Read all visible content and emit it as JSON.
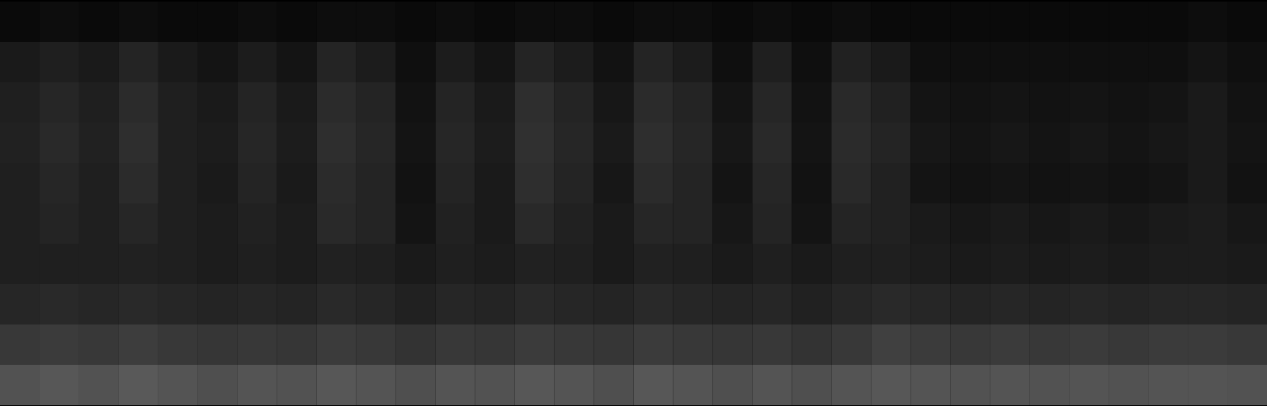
{
  "chart_data": {
    "type": "heatmap",
    "tick_labels": false,
    "zlim": [
      0,
      1
    ],
    "cells": [
      [
        0.04,
        0.05,
        0.04,
        0.05,
        0.04,
        0.04,
        0.05,
        0.04,
        0.05,
        0.05,
        0.04,
        0.05,
        0.04,
        0.05,
        0.05,
        0.04,
        0.05,
        0.05,
        0.04,
        0.05,
        0.04,
        0.05,
        0.04,
        0.04,
        0.04,
        0.04,
        0.04,
        0.04,
        0.04,
        0.04,
        0.05,
        0.04
      ],
      [
        0.1,
        0.12,
        0.1,
        0.14,
        0.1,
        0.08,
        0.11,
        0.08,
        0.14,
        0.11,
        0.06,
        0.11,
        0.08,
        0.14,
        0.11,
        0.07,
        0.14,
        0.11,
        0.06,
        0.12,
        0.06,
        0.13,
        0.1,
        0.06,
        0.06,
        0.06,
        0.06,
        0.06,
        0.06,
        0.06,
        0.08,
        0.06
      ],
      [
        0.12,
        0.15,
        0.12,
        0.17,
        0.12,
        0.1,
        0.14,
        0.1,
        0.17,
        0.14,
        0.07,
        0.14,
        0.1,
        0.18,
        0.14,
        0.09,
        0.17,
        0.14,
        0.08,
        0.15,
        0.07,
        0.16,
        0.13,
        0.08,
        0.07,
        0.08,
        0.07,
        0.08,
        0.07,
        0.08,
        0.1,
        0.07
      ],
      [
        0.13,
        0.16,
        0.13,
        0.18,
        0.12,
        0.11,
        0.15,
        0.11,
        0.18,
        0.15,
        0.08,
        0.15,
        0.11,
        0.19,
        0.15,
        0.1,
        0.18,
        0.15,
        0.09,
        0.16,
        0.08,
        0.17,
        0.14,
        0.09,
        0.08,
        0.09,
        0.08,
        0.09,
        0.08,
        0.09,
        0.1,
        0.08
      ],
      [
        0.12,
        0.15,
        0.12,
        0.17,
        0.12,
        0.1,
        0.14,
        0.1,
        0.17,
        0.14,
        0.07,
        0.14,
        0.1,
        0.18,
        0.14,
        0.09,
        0.17,
        0.14,
        0.08,
        0.15,
        0.07,
        0.16,
        0.13,
        0.08,
        0.07,
        0.08,
        0.07,
        0.08,
        0.07,
        0.08,
        0.1,
        0.07
      ],
      [
        0.12,
        0.14,
        0.12,
        0.15,
        0.12,
        0.11,
        0.13,
        0.11,
        0.16,
        0.14,
        0.08,
        0.13,
        0.1,
        0.16,
        0.13,
        0.1,
        0.15,
        0.14,
        0.09,
        0.14,
        0.08,
        0.14,
        0.13,
        0.1,
        0.09,
        0.1,
        0.09,
        0.1,
        0.09,
        0.1,
        0.11,
        0.09
      ],
      [
        0.12,
        0.12,
        0.12,
        0.13,
        0.12,
        0.11,
        0.12,
        0.11,
        0.13,
        0.12,
        0.1,
        0.12,
        0.11,
        0.13,
        0.12,
        0.1,
        0.13,
        0.12,
        0.1,
        0.12,
        0.1,
        0.12,
        0.12,
        0.11,
        0.1,
        0.11,
        0.1,
        0.11,
        0.1,
        0.11,
        0.11,
        0.1
      ],
      [
        0.15,
        0.16,
        0.15,
        0.16,
        0.15,
        0.14,
        0.15,
        0.14,
        0.16,
        0.15,
        0.13,
        0.15,
        0.14,
        0.16,
        0.15,
        0.14,
        0.16,
        0.15,
        0.14,
        0.15,
        0.13,
        0.15,
        0.16,
        0.15,
        0.14,
        0.15,
        0.14,
        0.15,
        0.14,
        0.15,
        0.15,
        0.14
      ],
      [
        0.22,
        0.23,
        0.22,
        0.24,
        0.22,
        0.21,
        0.22,
        0.21,
        0.23,
        0.22,
        0.2,
        0.22,
        0.21,
        0.23,
        0.22,
        0.21,
        0.23,
        0.22,
        0.21,
        0.22,
        0.2,
        0.22,
        0.25,
        0.23,
        0.22,
        0.23,
        0.22,
        0.23,
        0.22,
        0.23,
        0.23,
        0.22
      ],
      [
        0.32,
        0.34,
        0.32,
        0.35,
        0.33,
        0.31,
        0.33,
        0.32,
        0.34,
        0.33,
        0.31,
        0.33,
        0.32,
        0.34,
        0.33,
        0.31,
        0.34,
        0.33,
        0.31,
        0.33,
        0.31,
        0.33,
        0.34,
        0.33,
        0.32,
        0.33,
        0.32,
        0.33,
        0.32,
        0.33,
        0.33,
        0.32
      ]
    ]
  }
}
